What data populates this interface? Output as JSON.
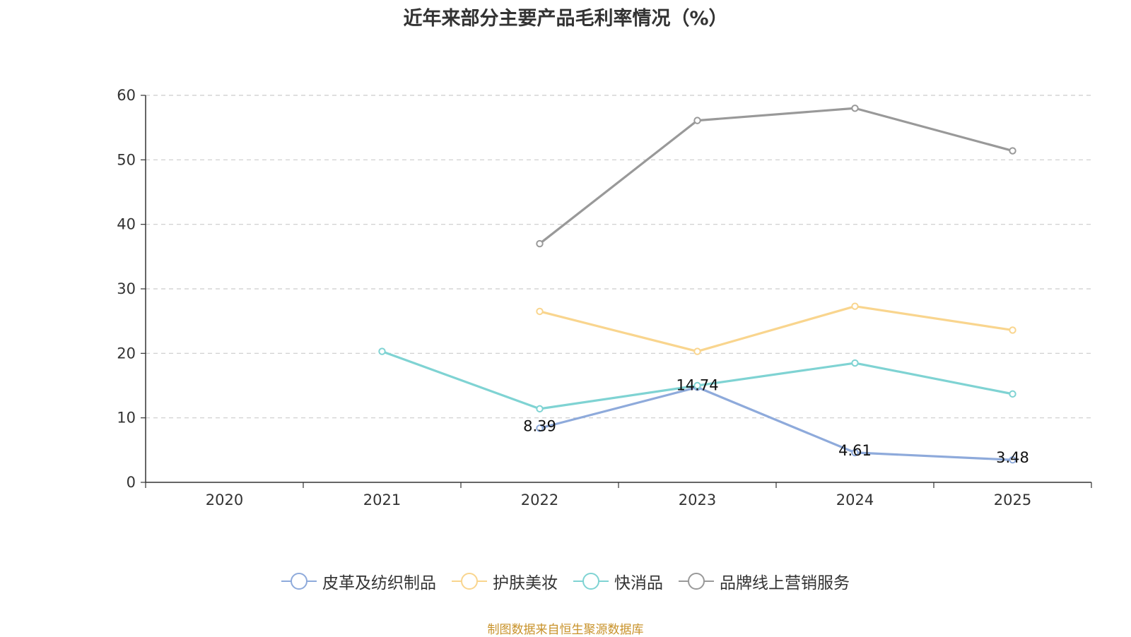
{
  "chart_data": {
    "type": "line",
    "title": "近年来部分主要产品毛利率情况（%）",
    "xlabel": "",
    "ylabel": "",
    "categories": [
      "2020",
      "2021",
      "2022",
      "2023",
      "2024",
      "2025"
    ],
    "ylim": [
      0,
      60
    ],
    "yticks": [
      0,
      10,
      20,
      30,
      40,
      50,
      60
    ],
    "grid": true,
    "legend_position": "bottom",
    "series": [
      {
        "name": "皮革及纺织制品",
        "color": "#8eaadb",
        "values": [
          null,
          null,
          8.39,
          14.74,
          4.61,
          3.48
        ],
        "labels": [
          null,
          null,
          "8.39",
          "14.74",
          "4.61",
          "3.48"
        ]
      },
      {
        "name": "护肤美妆",
        "color": "#f9d58e",
        "values": [
          null,
          null,
          26.5,
          20.3,
          27.3,
          23.6
        ],
        "labels": [
          null,
          null,
          null,
          null,
          null,
          null
        ]
      },
      {
        "name": "快消品",
        "color": "#7fd3d3",
        "values": [
          null,
          20.3,
          11.4,
          15.0,
          18.5,
          13.7
        ],
        "labels": [
          null,
          null,
          null,
          null,
          null,
          null
        ]
      },
      {
        "name": "品牌线上营销服务",
        "color": "#999999",
        "values": [
          null,
          null,
          37.0,
          56.1,
          58.0,
          51.4
        ],
        "labels": [
          null,
          null,
          null,
          null,
          null,
          null
        ]
      }
    ]
  },
  "source_note": "制图数据来自恒生聚源数据库"
}
